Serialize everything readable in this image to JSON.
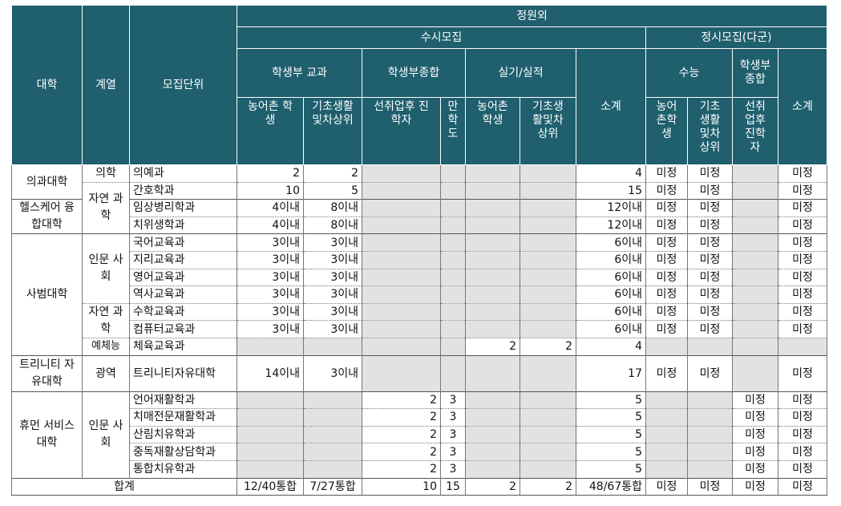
{
  "header": {
    "col_univ": "대학",
    "col_field": "계열",
    "col_unit": "모집단위",
    "outside_quota": "정원외",
    "susi": "수시모집",
    "jeongsi": "정시모집(다군)",
    "student_record_subject": "학생부 교과",
    "student_record_comprehensive": "학생부종합",
    "practical": "실기/실적",
    "subtotal": "소계",
    "suneung": "수능",
    "jeongsi_comprehensive": "학생부종합",
    "jeongsi_subtotal": "소계",
    "sub_rural": "농어촌 학생",
    "sub_basic": "기초생활및차상위",
    "sub_employed": "선취업후 진학자",
    "sub_manhak": "만학도",
    "sub_rural2": "농어촌 학생",
    "sub_basic2": "기초생활및차상위",
    "sub_j_rural": "농어촌학생",
    "sub_j_basic": "기초생활및차상위",
    "sub_j_employed": "선취업후진학자"
  },
  "body": {
    "u1": "의과대학",
    "u2": "헬스케어 융합대학",
    "u3": "사범대학",
    "u4": "트리니티 자유대학",
    "u5": "휴먼 서비스 대학",
    "f_med": "의학",
    "f_natsci": "자연 과학",
    "f_hum": "인문 사회",
    "f_natsci2": "자연 과학",
    "f_art": "예체능",
    "f_wide": "광역",
    "f_hum2": "인문 사회",
    "total_label": "합계"
  },
  "rows": [
    {
      "unit": "의예과",
      "c1": "2",
      "c2": "2",
      "c3": "",
      "c4": "",
      "c5": "",
      "c6": "",
      "sub": "4",
      "j1": "미정",
      "j2": "미정",
      "j3": "",
      "jsub": "미정"
    },
    {
      "unit": "간호학과",
      "c1": "10",
      "c2": "5",
      "c3": "",
      "c4": "",
      "c5": "",
      "c6": "",
      "sub": "15",
      "j1": "미정",
      "j2": "미정",
      "j3": "",
      "jsub": "미정"
    },
    {
      "unit": "임상병리학과",
      "c1": "4이내",
      "c2": "8이내",
      "c3": "",
      "c4": "",
      "c5": "",
      "c6": "",
      "sub": "12이내",
      "j1": "미정",
      "j2": "미정",
      "j3": "",
      "jsub": "미정"
    },
    {
      "unit": "치위생학과",
      "c1": "4이내",
      "c2": "8이내",
      "c3": "",
      "c4": "",
      "c5": "",
      "c6": "",
      "sub": "12이내",
      "j1": "미정",
      "j2": "미정",
      "j3": "",
      "jsub": "미정"
    },
    {
      "unit": "국어교육과",
      "c1": "3이내",
      "c2": "3이내",
      "c3": "",
      "c4": "",
      "c5": "",
      "c6": "",
      "sub": "6이내",
      "j1": "미정",
      "j2": "미정",
      "j3": "",
      "jsub": "미정"
    },
    {
      "unit": "지리교육과",
      "c1": "3이내",
      "c2": "3이내",
      "c3": "",
      "c4": "",
      "c5": "",
      "c6": "",
      "sub": "6이내",
      "j1": "미정",
      "j2": "미정",
      "j3": "",
      "jsub": "미정"
    },
    {
      "unit": "영어교육과",
      "c1": "3이내",
      "c2": "3이내",
      "c3": "",
      "c4": "",
      "c5": "",
      "c6": "",
      "sub": "6이내",
      "j1": "미정",
      "j2": "미정",
      "j3": "",
      "jsub": "미정"
    },
    {
      "unit": "역사교육과",
      "c1": "3이내",
      "c2": "3이내",
      "c3": "",
      "c4": "",
      "c5": "",
      "c6": "",
      "sub": "6이내",
      "j1": "미정",
      "j2": "미정",
      "j3": "",
      "jsub": "미정"
    },
    {
      "unit": "수학교육과",
      "c1": "3이내",
      "c2": "3이내",
      "c3": "",
      "c4": "",
      "c5": "",
      "c6": "",
      "sub": "6이내",
      "j1": "미정",
      "j2": "미정",
      "j3": "",
      "jsub": "미정"
    },
    {
      "unit": "컴퓨터교육과",
      "c1": "3이내",
      "c2": "3이내",
      "c3": "",
      "c4": "",
      "c5": "",
      "c6": "",
      "sub": "6이내",
      "j1": "미정",
      "j2": "미정",
      "j3": "",
      "jsub": "미정"
    },
    {
      "unit": "체육교육과",
      "c1": "",
      "c2": "",
      "c3": "",
      "c4": "",
      "c5": "2",
      "c6": "2",
      "sub": "4",
      "j1": "",
      "j2": "",
      "j3": "",
      "jsub": ""
    },
    {
      "unit": "트리니티자유대학",
      "c1": "14이내",
      "c2": "3이내",
      "c3": "",
      "c4": "",
      "c5": "",
      "c6": "",
      "sub": "17",
      "j1": "미정",
      "j2": "미정",
      "j3": "",
      "jsub": "미정"
    },
    {
      "unit": "언어재활학과",
      "c1": "",
      "c2": "",
      "c3": "2",
      "c4": "3",
      "c5": "",
      "c6": "",
      "sub": "5",
      "j1": "",
      "j2": "",
      "j3": "미정",
      "jsub": "미정"
    },
    {
      "unit": "치매전문재활학과",
      "c1": "",
      "c2": "",
      "c3": "2",
      "c4": "3",
      "c5": "",
      "c6": "",
      "sub": "5",
      "j1": "",
      "j2": "",
      "j3": "미정",
      "jsub": "미정"
    },
    {
      "unit": "산림치유학과",
      "c1": "",
      "c2": "",
      "c3": "2",
      "c4": "3",
      "c5": "",
      "c6": "",
      "sub": "5",
      "j1": "",
      "j2": "",
      "j3": "미정",
      "jsub": "미정"
    },
    {
      "unit": "중독재활상담학과",
      "c1": "",
      "c2": "",
      "c3": "2",
      "c4": "3",
      "c5": "",
      "c6": "",
      "sub": "5",
      "j1": "",
      "j2": "",
      "j3": "미정",
      "jsub": "미정"
    },
    {
      "unit": "통합치유학과",
      "c1": "",
      "c2": "",
      "c3": "2",
      "c4": "3",
      "c5": "",
      "c6": "",
      "sub": "5",
      "j1": "",
      "j2": "",
      "j3": "미정",
      "jsub": "미정"
    }
  ],
  "total": {
    "c1": "12/40통합",
    "c2": "7/27통합",
    "c3": "10",
    "c4": "15",
    "c5": "2",
    "c6": "2",
    "sub": "48/67통합",
    "j1": "미정",
    "j2": "미정",
    "j3": "미정",
    "jsub": "미정"
  },
  "colors": {
    "header_bg": "#1f5f6e",
    "grey_cell": "#e2e2e2"
  }
}
